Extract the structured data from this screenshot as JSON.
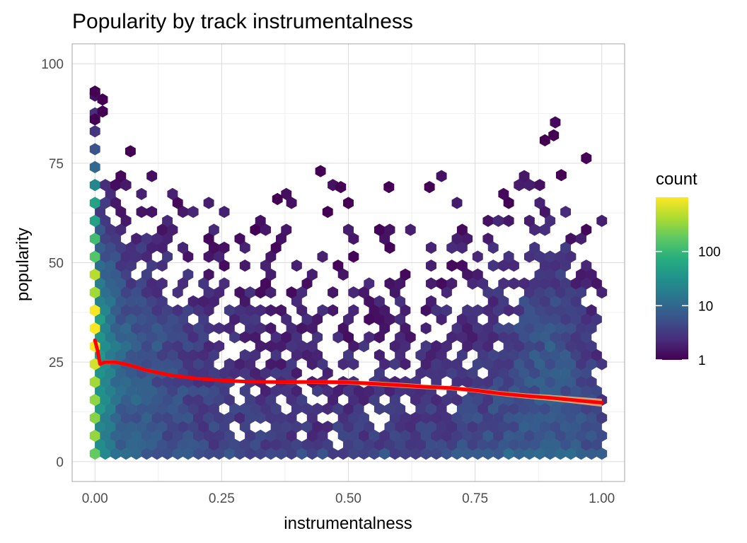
{
  "chart_data": {
    "type": "hexbin",
    "title": "Popularity by track instrumentalness",
    "xlabel": "instrumentalness",
    "ylabel": "popularity",
    "xlim": [
      -0.045,
      1.045
    ],
    "ylim": [
      -5,
      105
    ],
    "x_ticks": [
      0,
      0.25,
      0.5,
      0.75,
      1
    ],
    "x_tick_labels": [
      "0.00",
      "0.25",
      "0.50",
      "0.75",
      "1.00"
    ],
    "y_ticks": [
      0,
      25,
      50,
      75,
      100
    ],
    "y_tick_labels": [
      "0",
      "25",
      "50",
      "75",
      "100"
    ],
    "grid": true,
    "colorscale": "viridis",
    "color_transform": "log10",
    "legend": {
      "title": "count",
      "position": "right",
      "min": 1,
      "max": 1000,
      "breaks": [
        1,
        10,
        100
      ],
      "break_labels": [
        "1",
        "10",
        "100"
      ]
    },
    "hex_bins": {
      "bins_x": 50,
      "bins_y": 50,
      "density_grid_x": [
        0,
        0.01,
        0.025,
        0.05,
        0.1,
        0.2,
        0.3,
        0.4,
        0.5,
        0.6,
        0.7,
        0.8,
        0.85,
        0.9,
        0.95,
        1.0
      ],
      "density_grid_y": [
        0,
        5,
        10,
        15,
        20,
        25,
        30,
        35,
        40,
        45,
        50,
        55,
        60,
        65,
        70,
        75,
        80,
        85,
        90,
        95
      ],
      "log10_count_grid": [
        [
          2.3,
          2.4,
          2.5,
          2.6,
          2.7,
          2.8,
          2.9,
          2.9,
          2.8,
          2.6,
          2.4,
          2.2,
          1.9,
          1.6,
          1.3,
          1.0,
          0.7,
          0.5,
          0.3,
          0.2
        ],
        [
          1.4,
          1.4,
          1.5,
          1.6,
          1.7,
          1.7,
          1.7,
          1.6,
          1.5,
          1.3,
          1.1,
          0.9,
          0.7,
          0.5,
          0.3,
          0.2,
          0.1,
          0.1,
          0.05,
          0.0
        ],
        [
          1.2,
          1.1,
          1.2,
          1.2,
          1.3,
          1.3,
          1.3,
          1.2,
          1.1,
          1.0,
          0.8,
          0.7,
          0.5,
          0.4,
          0.2,
          0.1,
          0.05,
          0.0,
          0.0,
          0.0
        ],
        [
          1.0,
          0.9,
          0.9,
          1.0,
          1.0,
          1.0,
          1.0,
          0.9,
          0.8,
          0.7,
          0.6,
          0.5,
          0.4,
          0.3,
          0.15,
          0.05,
          0.0,
          0.0,
          0.0,
          0.0
        ],
        [
          0.9,
          0.8,
          0.8,
          0.8,
          0.8,
          0.8,
          0.8,
          0.7,
          0.6,
          0.5,
          0.45,
          0.4,
          0.3,
          0.2,
          0.1,
          0.0,
          0.0,
          0.0,
          0.0,
          0.0
        ],
        [
          0.8,
          0.6,
          0.6,
          0.6,
          0.6,
          0.55,
          0.5,
          0.45,
          0.4,
          0.35,
          0.3,
          0.25,
          0.2,
          0.1,
          0.05,
          0.0,
          0.0,
          0.0,
          0.0,
          0.0
        ],
        [
          0.75,
          0.55,
          0.5,
          0.5,
          0.45,
          0.4,
          0.4,
          0.35,
          0.3,
          0.25,
          0.2,
          0.2,
          0.1,
          0.05,
          0.0,
          0.0,
          0.0,
          0.0,
          0.0,
          0.0
        ],
        [
          0.75,
          0.5,
          0.45,
          0.45,
          0.4,
          0.35,
          0.35,
          0.3,
          0.25,
          0.2,
          0.2,
          0.15,
          0.1,
          0.05,
          0.05,
          0.0,
          0.0,
          0.0,
          0.0,
          0.0
        ],
        [
          0.75,
          0.5,
          0.45,
          0.4,
          0.35,
          0.35,
          0.3,
          0.25,
          0.2,
          0.2,
          0.15,
          0.15,
          0.1,
          0.05,
          0.0,
          0.0,
          0.0,
          0.0,
          0.0,
          0.0
        ],
        [
          0.8,
          0.55,
          0.5,
          0.45,
          0.4,
          0.35,
          0.35,
          0.3,
          0.25,
          0.2,
          0.2,
          0.15,
          0.1,
          0.05,
          0.0,
          0.0,
          0.0,
          0.0,
          0.0,
          0.0
        ],
        [
          0.85,
          0.6,
          0.55,
          0.5,
          0.45,
          0.4,
          0.35,
          0.3,
          0.3,
          0.25,
          0.2,
          0.2,
          0.15,
          0.1,
          0.05,
          0.05,
          0.0,
          0.0,
          0.0,
          0.0
        ],
        [
          1.0,
          0.75,
          0.7,
          0.65,
          0.6,
          0.55,
          0.5,
          0.45,
          0.4,
          0.35,
          0.3,
          0.25,
          0.2,
          0.15,
          0.05,
          0.0,
          0.0,
          0.0,
          0.0,
          0.0
        ],
        [
          1.05,
          0.8,
          0.75,
          0.75,
          0.75,
          0.7,
          0.7,
          0.65,
          0.6,
          0.5,
          0.4,
          0.35,
          0.25,
          0.15,
          0.1,
          0.05,
          0.0,
          0.0,
          0.0,
          0.0
        ],
        [
          1.1,
          0.85,
          0.8,
          0.8,
          0.85,
          0.85,
          0.8,
          0.75,
          0.7,
          0.6,
          0.5,
          0.4,
          0.3,
          0.2,
          0.1,
          0.05,
          0.05,
          0.05,
          0.0,
          0.0
        ],
        [
          1.05,
          0.8,
          0.75,
          0.75,
          0.7,
          0.65,
          0.6,
          0.55,
          0.45,
          0.4,
          0.35,
          0.3,
          0.25,
          0.15,
          0.1,
          0.05,
          0.0,
          0.0,
          0.0,
          0.0
        ],
        [
          0.9,
          0.6,
          0.55,
          0.5,
          0.45,
          0.4,
          0.35,
          0.3,
          0.25,
          0.2,
          0.15,
          0.1,
          0.1,
          0.05,
          0.0,
          0.0,
          0.0,
          0.0,
          0.0,
          0.0
        ]
      ],
      "sparse_outlier_bins": [
        {
          "x": 0.0,
          "y": 93
        },
        {
          "x": 0.0,
          "y": 86
        },
        {
          "x": 0.015,
          "y": 91
        },
        {
          "x": 0.015,
          "y": 88
        },
        {
          "x": 0.07,
          "y": 78
        },
        {
          "x": 0.445,
          "y": 73
        },
        {
          "x": 0.485,
          "y": 69
        },
        {
          "x": 0.58,
          "y": 69
        },
        {
          "x": 0.905,
          "y": 82
        },
        {
          "x": 0.92,
          "y": 72
        },
        {
          "x": 0.36,
          "y": 66
        },
        {
          "x": 0.5,
          "y": 65
        },
        {
          "x": 0.66,
          "y": 69
        }
      ]
    },
    "smooth_line": {
      "color": "#ff0000",
      "ribbon_color": "#f5b073",
      "x": [
        0.0,
        0.005,
        0.01,
        0.02,
        0.04,
        0.06,
        0.08,
        0.1,
        0.15,
        0.2,
        0.25,
        0.3,
        0.35,
        0.4,
        0.45,
        0.5,
        0.55,
        0.6,
        0.65,
        0.7,
        0.75,
        0.8,
        0.85,
        0.9,
        0.95,
        1.0
      ],
      "y": [
        30.5,
        28.0,
        24.5,
        25.0,
        25.0,
        24.5,
        23.8,
        23.0,
        21.7,
        20.9,
        20.4,
        20.1,
        20.0,
        20.0,
        20.0,
        19.9,
        19.6,
        19.2,
        18.8,
        18.5,
        17.9,
        17.1,
        16.5,
        16.0,
        15.4,
        14.8
      ],
      "ribbon_halfwidth": [
        0.6,
        0.6,
        0.5,
        0.5,
        0.45,
        0.45,
        0.45,
        0.45,
        0.4,
        0.35,
        0.35,
        0.35,
        0.4,
        0.45,
        0.5,
        0.55,
        0.6,
        0.6,
        0.6,
        0.55,
        0.55,
        0.6,
        0.65,
        0.75,
        0.85,
        1.0
      ]
    }
  }
}
